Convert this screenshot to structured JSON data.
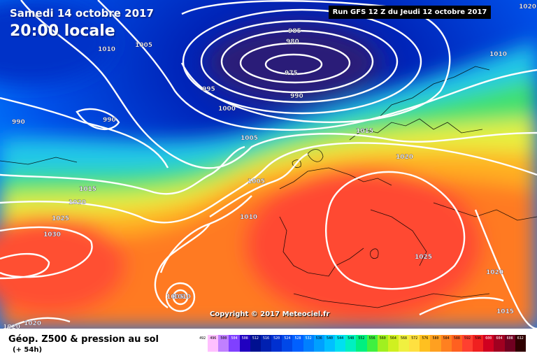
{
  "header": {
    "date": "Samedi 14 octobre 2017",
    "time": "20:00 locale",
    "run": "Run GFS 12 Z du Jeudi 12 octobre 2017"
  },
  "footer": {
    "title": "Géop. Z500 & pression au sol",
    "subtitle": "(+ 54h)",
    "copyright": "Copyright © 2017 Meteociel.fr"
  },
  "isobar_labels": [
    {
      "text": "1010",
      "cls": "w"
    },
    {
      "text": "1005",
      "cls": "w"
    },
    {
      "text": "985",
      "cls": "w"
    },
    {
      "text": "980",
      "cls": "w"
    },
    {
      "text": "975",
      "cls": "w"
    },
    {
      "text": "990",
      "cls": "w"
    },
    {
      "text": "995",
      "cls": "w"
    },
    {
      "text": "1000",
      "cls": "w"
    },
    {
      "text": "990",
      "cls": "w"
    },
    {
      "text": "990",
      "cls": "w"
    },
    {
      "text": "1005",
      "cls": "w"
    },
    {
      "text": "1005",
      "cls": "w"
    },
    {
      "text": "1015",
      "cls": "w"
    },
    {
      "text": "1020",
      "cls": "w"
    },
    {
      "text": "1015",
      "cls": "w"
    },
    {
      "text": "1020",
      "cls": "w"
    },
    {
      "text": "1025",
      "cls": "w"
    },
    {
      "text": "1030",
      "cls": "w"
    },
    {
      "text": "1010",
      "cls": "w"
    },
    {
      "text": "1025",
      "cls": "w"
    },
    {
      "text": "1020",
      "cls": "w"
    },
    {
      "text": "1015",
      "cls": "w"
    },
    {
      "text": "1005",
      "cls": "w"
    },
    {
      "text": "1010",
      "cls": "w"
    },
    {
      "text": "1020",
      "cls": "w"
    },
    {
      "text": "1020",
      "cls": "w"
    },
    {
      "text": "1020",
      "cls": "w"
    },
    {
      "text": "1010",
      "cls": "w"
    }
  ],
  "legend": {
    "values": [
      "492",
      "496",
      "500",
      "504",
      "508",
      "512",
      "516",
      "520",
      "524",
      "528",
      "532",
      "536",
      "540",
      "544",
      "548",
      "552",
      "556",
      "560",
      "564",
      "568",
      "572",
      "576",
      "580",
      "584",
      "588",
      "592",
      "596",
      "600",
      "604",
      "608",
      "612"
    ],
    "colors": [
      "#ffffff",
      "#ffc0ff",
      "#c080ff",
      "#8040ff",
      "#2000c0",
      "#001090",
      "#0020b0",
      "#0030d0",
      "#0048e8",
      "#0060ff",
      "#0080ff",
      "#00a0ff",
      "#00c0ff",
      "#00e0f0",
      "#00f0c0",
      "#00f080",
      "#40f040",
      "#a0f020",
      "#d0f020",
      "#f0f040",
      "#ffe040",
      "#ffc020",
      "#ffa020",
      "#ff8020",
      "#ff6020",
      "#ff4030",
      "#f02020",
      "#d00020",
      "#a00020",
      "#700020",
      "#300000"
    ]
  }
}
